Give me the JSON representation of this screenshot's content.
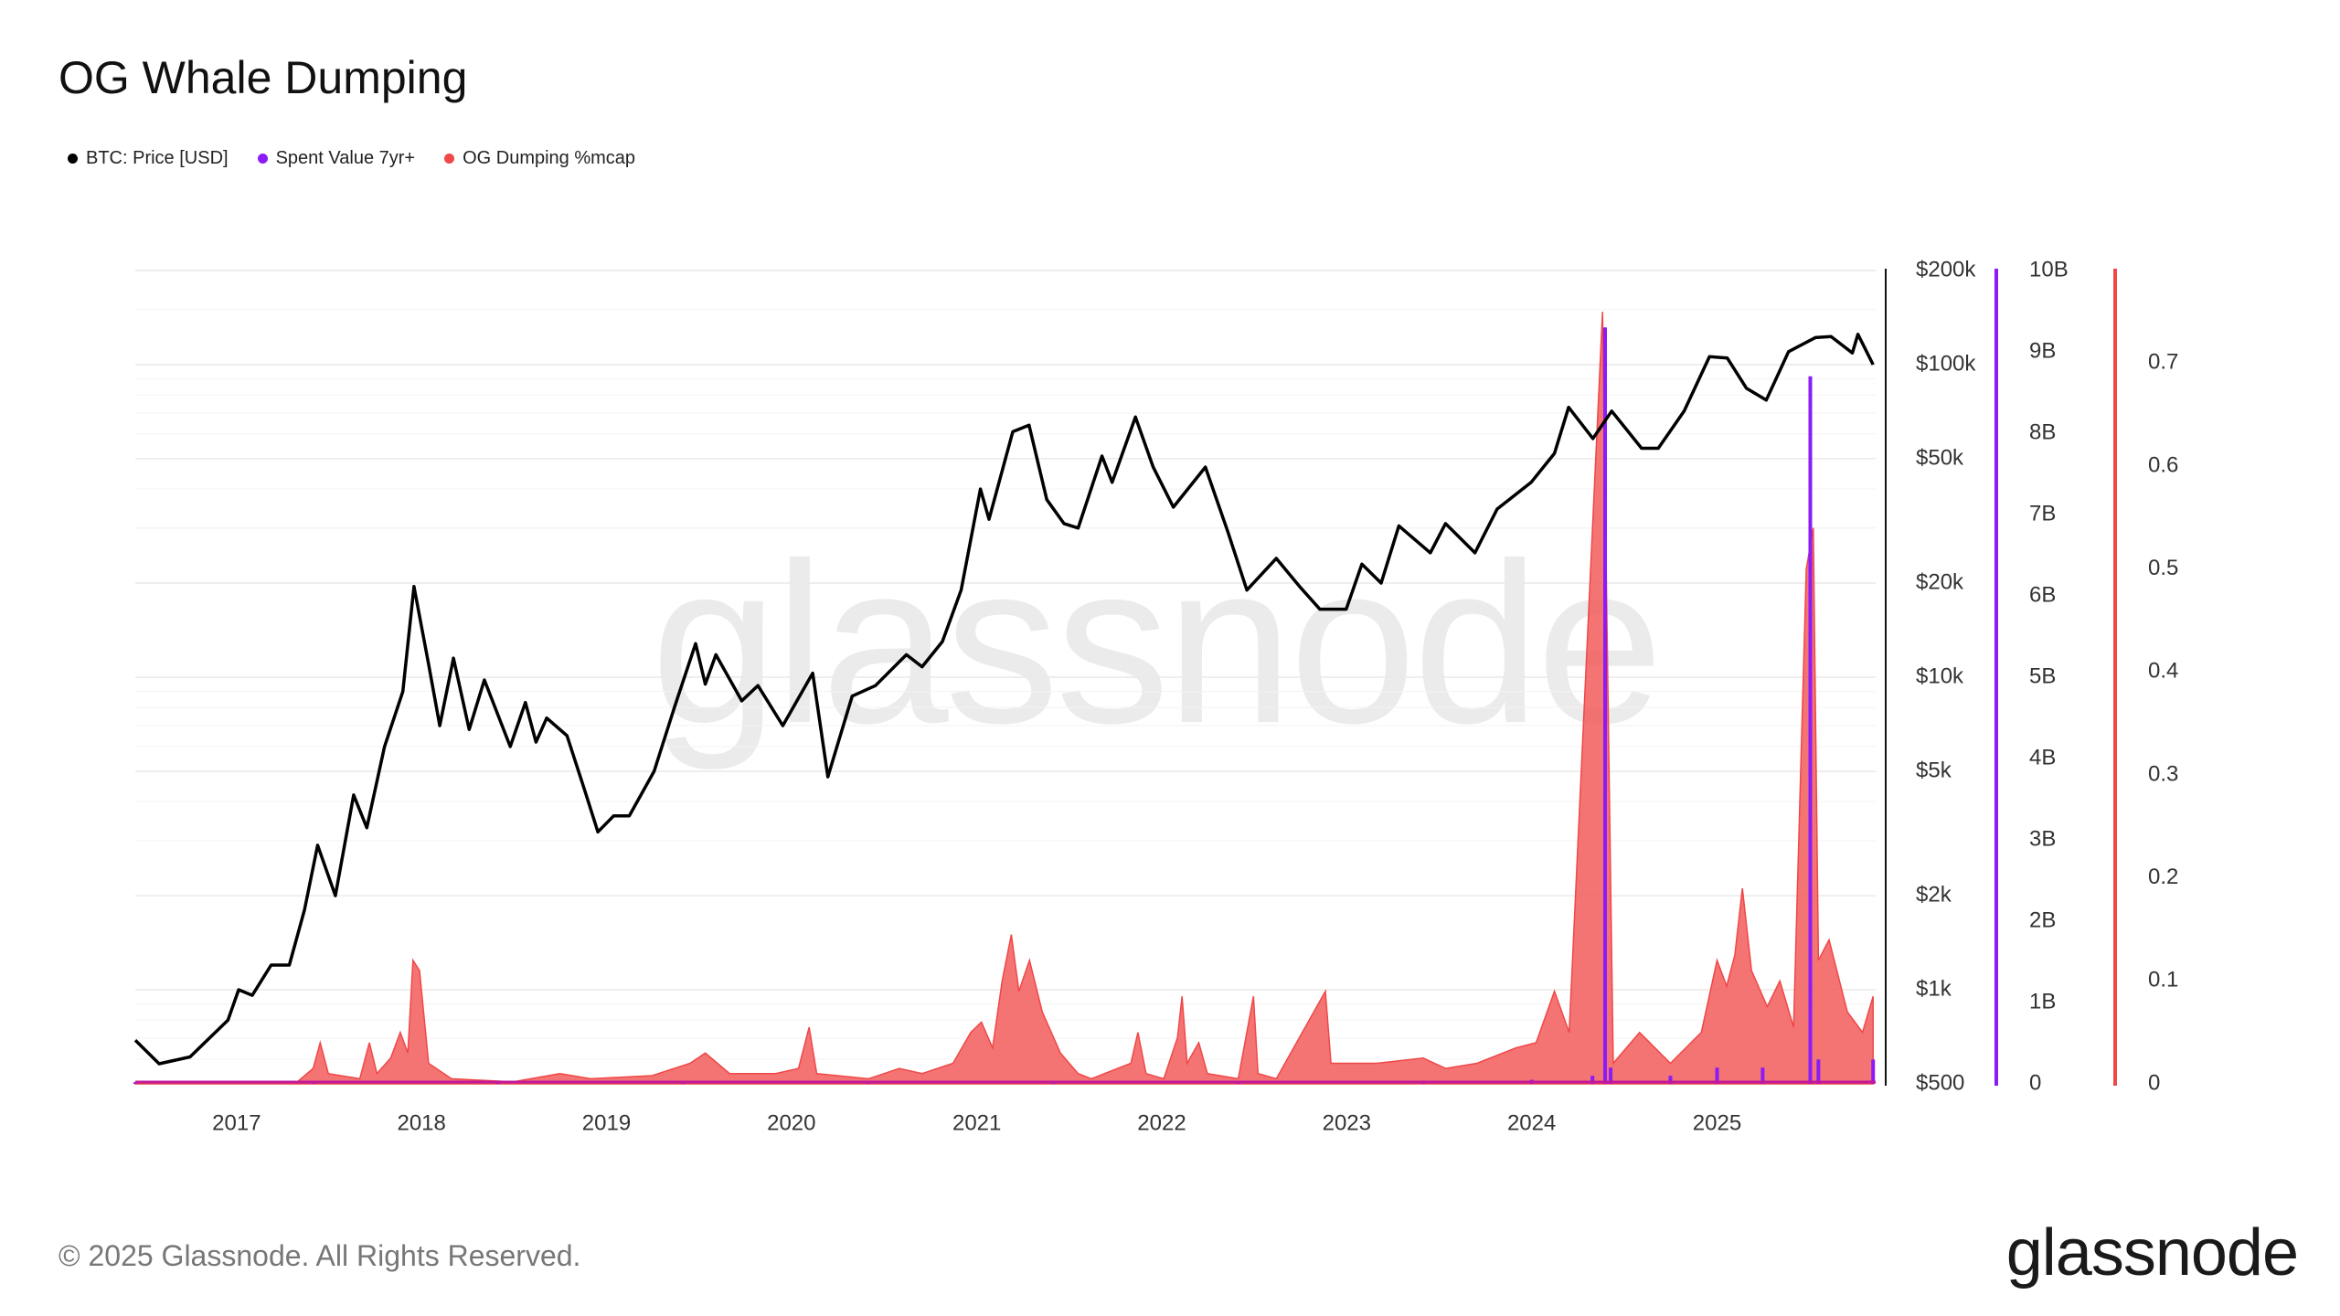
{
  "title": "OG Whale Dumping",
  "footer": "© 2025 Glassnode. All Rights Reserved.",
  "brand": "glassnode",
  "watermark": "glassnode",
  "colors": {
    "price": "#000000",
    "spent": "#8b1cf7",
    "og": "#f04747",
    "og_fill": "#f25c5c"
  },
  "chart_data": {
    "type": "line",
    "title": "OG Whale Dumping",
    "series": [
      {
        "name": "BTC: Price [USD]",
        "type": "line",
        "axis": "price",
        "color": "#000000",
        "points": [
          [
            "2016-06-15",
            690
          ],
          [
            "2016-08-01",
            580
          ],
          [
            "2016-10-01",
            610
          ],
          [
            "2016-12-15",
            800
          ],
          [
            "2017-01-05",
            1000
          ],
          [
            "2017-02-01",
            960
          ],
          [
            "2017-03-10",
            1200
          ],
          [
            "2017-04-15",
            1200
          ],
          [
            "2017-05-15",
            1800
          ],
          [
            "2017-06-10",
            2900
          ],
          [
            "2017-07-15",
            2000
          ],
          [
            "2017-08-20",
            4200
          ],
          [
            "2017-09-15",
            3300
          ],
          [
            "2017-10-20",
            6000
          ],
          [
            "2017-11-25",
            9000
          ],
          [
            "2017-12-17",
            19500
          ],
          [
            "2018-01-15",
            11000
          ],
          [
            "2018-02-06",
            7000
          ],
          [
            "2018-03-05",
            11500
          ],
          [
            "2018-04-05",
            6800
          ],
          [
            "2018-05-05",
            9800
          ],
          [
            "2018-06-25",
            6000
          ],
          [
            "2018-07-25",
            8300
          ],
          [
            "2018-08-15",
            6200
          ],
          [
            "2018-09-05",
            7400
          ],
          [
            "2018-10-15",
            6500
          ],
          [
            "2018-11-20",
            4300
          ],
          [
            "2018-12-15",
            3200
          ],
          [
            "2019-01-15",
            3600
          ],
          [
            "2019-02-15",
            3600
          ],
          [
            "2019-04-05",
            5000
          ],
          [
            "2019-05-15",
            8000
          ],
          [
            "2019-06-26",
            12800
          ],
          [
            "2019-07-15",
            9500
          ],
          [
            "2019-08-05",
            11800
          ],
          [
            "2019-09-25",
            8400
          ],
          [
            "2019-10-27",
            9400
          ],
          [
            "2019-12-15",
            7000
          ],
          [
            "2020-02-12",
            10300
          ],
          [
            "2020-03-13",
            4800
          ],
          [
            "2020-04-30",
            8700
          ],
          [
            "2020-06-15",
            9400
          ],
          [
            "2020-08-15",
            11800
          ],
          [
            "2020-09-15",
            10800
          ],
          [
            "2020-10-25",
            13000
          ],
          [
            "2020-12-01",
            19000
          ],
          [
            "2021-01-08",
            40000
          ],
          [
            "2021-01-25",
            32000
          ],
          [
            "2021-03-13",
            61000
          ],
          [
            "2021-04-14",
            64000
          ],
          [
            "2021-05-19",
            37000
          ],
          [
            "2021-06-22",
            31000
          ],
          [
            "2021-07-20",
            30000
          ],
          [
            "2021-09-05",
            51000
          ],
          [
            "2021-09-25",
            42000
          ],
          [
            "2021-11-10",
            68000
          ],
          [
            "2021-12-15",
            47000
          ],
          [
            "2022-01-24",
            35000
          ],
          [
            "2022-03-28",
            47000
          ],
          [
            "2022-05-12",
            29000
          ],
          [
            "2022-06-18",
            19000
          ],
          [
            "2022-08-15",
            24000
          ],
          [
            "2022-09-30",
            19500
          ],
          [
            "2022-11-09",
            16500
          ],
          [
            "2022-12-31",
            16500
          ],
          [
            "2023-01-31",
            23000
          ],
          [
            "2023-03-10",
            20000
          ],
          [
            "2023-04-14",
            30500
          ],
          [
            "2023-06-15",
            25000
          ],
          [
            "2023-07-15",
            31000
          ],
          [
            "2023-09-11",
            25000
          ],
          [
            "2023-10-25",
            34500
          ],
          [
            "2023-12-31",
            42000
          ],
          [
            "2024-02-15",
            52000
          ],
          [
            "2024-03-14",
            73000
          ],
          [
            "2024-05-01",
            58000
          ],
          [
            "2024-06-07",
            71000
          ],
          [
            "2024-08-05",
            54000
          ],
          [
            "2024-09-07",
            54000
          ],
          [
            "2024-10-28",
            71000
          ],
          [
            "2024-12-17",
            106000
          ],
          [
            "2025-01-21",
            105000
          ],
          [
            "2025-02-28",
            84000
          ],
          [
            "2025-04-08",
            77000
          ],
          [
            "2025-05-22",
            110000
          ],
          [
            "2025-07-14",
            122000
          ],
          [
            "2025-08-14",
            123000
          ],
          [
            "2025-09-25",
            109000
          ],
          [
            "2025-10-06",
            125000
          ],
          [
            "2025-11-05",
            100000
          ]
        ]
      },
      {
        "name": "Spent Value 7yr+",
        "type": "bar",
        "axis": "spent",
        "color": "#8b1cf7",
        "points": [
          [
            "2016-06-15",
            0.02
          ],
          [
            "2017-06-01",
            0.02
          ],
          [
            "2018-06-01",
            0.02
          ],
          [
            "2019-06-01",
            0.02
          ],
          [
            "2020-06-01",
            0.02
          ],
          [
            "2021-06-01",
            0.03
          ],
          [
            "2022-06-01",
            0.03
          ],
          [
            "2023-06-01",
            0.04
          ],
          [
            "2024-01-01",
            0.05
          ],
          [
            "2024-04-30",
            0.1
          ],
          [
            "2024-05-25",
            9.3
          ],
          [
            "2024-06-05",
            0.2
          ],
          [
            "2024-10-01",
            0.1
          ],
          [
            "2025-01-01",
            0.2
          ],
          [
            "2025-04-01",
            0.2
          ],
          [
            "2025-07-04",
            8.7
          ],
          [
            "2025-07-20",
            0.3
          ],
          [
            "2025-11-05",
            0.3
          ]
        ]
      },
      {
        "name": "OG Dumping %mcap",
        "type": "area",
        "axis": "og",
        "color": "#f04747",
        "points": [
          [
            "2016-06-15",
            0.001
          ],
          [
            "2017-05-01",
            0.002
          ],
          [
            "2017-06-01",
            0.015
          ],
          [
            "2017-06-15",
            0.04
          ],
          [
            "2017-07-01",
            0.01
          ],
          [
            "2017-09-01",
            0.005
          ],
          [
            "2017-09-20",
            0.04
          ],
          [
            "2017-10-05",
            0.01
          ],
          [
            "2017-11-01",
            0.025
          ],
          [
            "2017-11-20",
            0.05
          ],
          [
            "2017-12-05",
            0.03
          ],
          [
            "2017-12-15",
            0.12
          ],
          [
            "2017-12-28",
            0.11
          ],
          [
            "2018-01-15",
            0.02
          ],
          [
            "2018-03-01",
            0.005
          ],
          [
            "2018-07-01",
            0.002
          ],
          [
            "2018-10-01",
            0.01
          ],
          [
            "2018-12-01",
            0.005
          ],
          [
            "2019-04-01",
            0.008
          ],
          [
            "2019-06-15",
            0.02
          ],
          [
            "2019-07-15",
            0.03
          ],
          [
            "2019-09-01",
            0.01
          ],
          [
            "2019-12-01",
            0.01
          ],
          [
            "2020-01-15",
            0.015
          ],
          [
            "2020-02-05",
            0.055
          ],
          [
            "2020-02-20",
            0.01
          ],
          [
            "2020-06-01",
            0.005
          ],
          [
            "2020-08-01",
            0.015
          ],
          [
            "2020-09-15",
            0.01
          ],
          [
            "2020-11-15",
            0.02
          ],
          [
            "2020-12-20",
            0.05
          ],
          [
            "2021-01-10",
            0.06
          ],
          [
            "2021-02-01",
            0.035
          ],
          [
            "2021-02-20",
            0.1
          ],
          [
            "2021-03-10",
            0.145
          ],
          [
            "2021-03-25",
            0.09
          ],
          [
            "2021-04-15",
            0.12
          ],
          [
            "2021-05-10",
            0.07
          ],
          [
            "2021-06-15",
            0.03
          ],
          [
            "2021-07-20",
            0.01
          ],
          [
            "2021-08-15",
            0.005
          ],
          [
            "2021-09-10",
            0.01
          ],
          [
            "2021-11-01",
            0.02
          ],
          [
            "2021-11-15",
            0.05
          ],
          [
            "2021-12-01",
            0.01
          ],
          [
            "2022-01-05",
            0.005
          ],
          [
            "2022-02-01",
            0.045
          ],
          [
            "2022-02-10",
            0.085
          ],
          [
            "2022-02-20",
            0.02
          ],
          [
            "2022-03-15",
            0.04
          ],
          [
            "2022-04-01",
            0.01
          ],
          [
            "2022-06-01",
            0.005
          ],
          [
            "2022-07-01",
            0.085
          ],
          [
            "2022-07-10",
            0.01
          ],
          [
            "2022-08-15",
            0.005
          ],
          [
            "2022-11-20",
            0.09
          ],
          [
            "2022-12-01",
            0.02
          ],
          [
            "2023-03-01",
            0.02
          ],
          [
            "2023-06-01",
            0.025
          ],
          [
            "2023-07-15",
            0.015
          ],
          [
            "2023-09-15",
            0.02
          ],
          [
            "2023-12-01",
            0.035
          ],
          [
            "2024-01-10",
            0.04
          ],
          [
            "2024-02-15",
            0.09
          ],
          [
            "2024-03-15",
            0.05
          ],
          [
            "2024-05-20",
            0.75
          ],
          [
            "2024-06-10",
            0.02
          ],
          [
            "2024-08-01",
            0.05
          ],
          [
            "2024-10-01",
            0.02
          ],
          [
            "2024-12-01",
            0.05
          ],
          [
            "2025-01-01",
            0.12
          ],
          [
            "2025-01-20",
            0.095
          ],
          [
            "2025-02-05",
            0.125
          ],
          [
            "2025-02-20",
            0.19
          ],
          [
            "2025-03-10",
            0.11
          ],
          [
            "2025-04-10",
            0.075
          ],
          [
            "2025-05-05",
            0.1
          ],
          [
            "2025-06-01",
            0.055
          ],
          [
            "2025-06-26",
            0.5
          ],
          [
            "2025-07-10",
            0.54
          ],
          [
            "2025-07-20",
            0.12
          ],
          [
            "2025-08-10",
            0.14
          ],
          [
            "2025-09-15",
            0.07
          ],
          [
            "2025-10-15",
            0.05
          ],
          [
            "2025-11-05",
            0.085
          ]
        ]
      }
    ],
    "axes": {
      "x": {
        "type": "date",
        "tick_labels": [
          "2017",
          "2018",
          "2019",
          "2020",
          "2021",
          "2022",
          "2023",
          "2024",
          "2025"
        ],
        "range": [
          "2016-06-15",
          "2025-11-10"
        ]
      },
      "price": {
        "scale": "log",
        "range": [
          500,
          200000
        ],
        "tick_labels": [
          "$500",
          "$1k",
          "$2k",
          "$5k",
          "$10k",
          "$20k",
          "$50k",
          "$100k",
          "$200k"
        ],
        "tick_values": [
          500,
          1000,
          2000,
          5000,
          10000,
          20000,
          50000,
          100000,
          200000
        ]
      },
      "spent": {
        "scale": "linear",
        "range": [
          0,
          10
        ],
        "tick_labels": [
          "0",
          "1B",
          "2B",
          "3B",
          "4B",
          "5B",
          "6B",
          "7B",
          "8B",
          "9B",
          "10B"
        ],
        "tick_values": [
          0,
          1,
          2,
          3,
          4,
          5,
          6,
          7,
          8,
          9,
          10
        ]
      },
      "og": {
        "scale": "linear",
        "range": [
          0,
          0.79
        ],
        "tick_labels": [
          "0",
          "0.1",
          "0.2",
          "0.3",
          "0.4",
          "0.5",
          "0.6",
          "0.7"
        ],
        "tick_values": [
          0,
          0.1,
          0.2,
          0.3,
          0.4,
          0.5,
          0.6,
          0.7
        ]
      }
    },
    "grid": true,
    "legend": "top-left"
  }
}
